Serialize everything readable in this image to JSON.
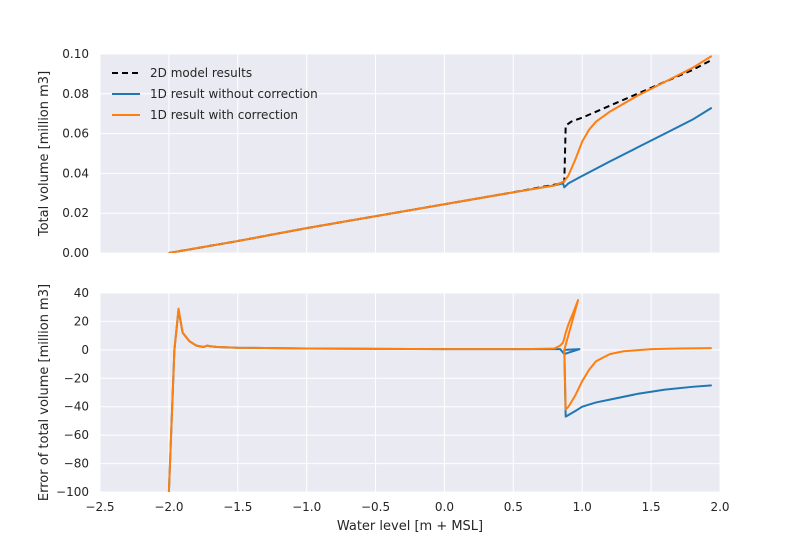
{
  "chart_data": [
    {
      "type": "line",
      "xlabel": "",
      "ylabel": "Total volume [million m3]",
      "xlim": [
        -2.5,
        2.0
      ],
      "ylim": [
        0.0,
        0.1
      ],
      "xticks": [
        -2.5,
        -2.0,
        -1.5,
        -1.0,
        -0.5,
        0.0,
        0.5,
        1.0,
        1.5,
        2.0
      ],
      "yticks": [
        "0.00",
        "0.02",
        "0.04",
        "0.06",
        "0.08",
        "0.10"
      ],
      "grid": true,
      "legend_position": "top-left",
      "series": [
        {
          "name": "2D model results",
          "color": "#000000",
          "dash": true,
          "x": [
            -2.0,
            -1.5,
            -1.0,
            -0.5,
            0.0,
            0.5,
            0.85,
            0.87,
            0.88,
            0.92,
            1.0,
            1.2,
            1.4,
            1.6,
            1.8,
            1.94
          ],
          "y": [
            0.0,
            0.006,
            0.0125,
            0.0185,
            0.0245,
            0.0305,
            0.035,
            0.036,
            0.064,
            0.066,
            0.068,
            0.074,
            0.08,
            0.086,
            0.092,
            0.097
          ]
        },
        {
          "name": "1D result without correction",
          "color": "#1f77b4",
          "dash": false,
          "x": [
            -2.0,
            -1.5,
            -1.0,
            -0.5,
            0.0,
            0.5,
            0.8,
            0.86,
            0.87,
            0.9,
            0.98,
            1.2,
            1.4,
            1.6,
            1.8,
            1.94
          ],
          "y": [
            0.0,
            0.006,
            0.0125,
            0.0185,
            0.0245,
            0.0305,
            0.034,
            0.035,
            0.033,
            0.035,
            0.038,
            0.046,
            0.053,
            0.06,
            0.067,
            0.073
          ]
        },
        {
          "name": "1D result with correction",
          "color": "#ff7f0e",
          "dash": false,
          "x": [
            -2.0,
            -1.5,
            -1.0,
            -0.5,
            0.0,
            0.5,
            0.8,
            0.87,
            0.9,
            0.95,
            1.0,
            1.05,
            1.1,
            1.2,
            1.3,
            1.4,
            1.6,
            1.8,
            1.94
          ],
          "y": [
            0.0,
            0.006,
            0.0125,
            0.0185,
            0.0245,
            0.0305,
            0.034,
            0.036,
            0.039,
            0.047,
            0.056,
            0.062,
            0.066,
            0.071,
            0.075,
            0.079,
            0.086,
            0.093,
            0.099
          ]
        }
      ]
    },
    {
      "type": "line",
      "xlabel": "Water level [m + MSL]",
      "ylabel": "Error of total volume [million m3]",
      "xlim": [
        -2.5,
        2.0
      ],
      "ylim": [
        -100,
        40
      ],
      "xticks": [
        -2.5,
        -2.0,
        -1.5,
        -1.0,
        -0.5,
        0.0,
        0.5,
        1.0,
        1.5,
        2.0
      ],
      "yticks": [
        40,
        20,
        0,
        -20,
        -40,
        -60,
        -80,
        -100
      ],
      "grid": true,
      "series": [
        {
          "color": "#1f77b4",
          "x": [
            -2.0,
            -1.96,
            -1.93,
            -1.9,
            -1.85,
            -1.8,
            -1.75,
            -1.72,
            -1.7,
            -1.65,
            -1.5,
            -1.0,
            0.0,
            0.6,
            0.84,
            0.87,
            0.9,
            0.98,
            0.87,
            0.88,
            0.95,
            1.0,
            1.1,
            1.2,
            1.4,
            1.6,
            1.8,
            1.94
          ],
          "y": [
            -100,
            0,
            28,
            12,
            6,
            3,
            2,
            3,
            2.5,
            2,
            1.5,
            1,
            0.5,
            0.5,
            0.5,
            -3,
            -2,
            0.5,
            0,
            -47,
            -43,
            -40,
            -37,
            -35,
            -31,
            -28,
            -26,
            -25
          ]
        },
        {
          "color": "#ff7f0e",
          "x": [
            -2.0,
            -1.96,
            -1.93,
            -1.9,
            -1.85,
            -1.8,
            -1.75,
            -1.72,
            -1.7,
            -1.65,
            -1.5,
            -1.0,
            0.0,
            0.6,
            0.8,
            0.84,
            0.86,
            0.87,
            0.88,
            0.9,
            0.93,
            0.95,
            0.97,
            0.87,
            0.88,
            0.9,
            0.95,
            1.0,
            1.05,
            1.1,
            1.2,
            1.3,
            1.5,
            1.7,
            1.94
          ],
          "y": [
            -100,
            0,
            29,
            12,
            6,
            3,
            2,
            3,
            2.5,
            2,
            1.5,
            1,
            0.5,
            0.5,
            1,
            3,
            5,
            8,
            12,
            18,
            25,
            30,
            35,
            0,
            -42,
            -40,
            -32,
            -22,
            -14,
            -8,
            -3,
            -1,
            0.5,
            1,
            1.2
          ]
        }
      ]
    }
  ]
}
